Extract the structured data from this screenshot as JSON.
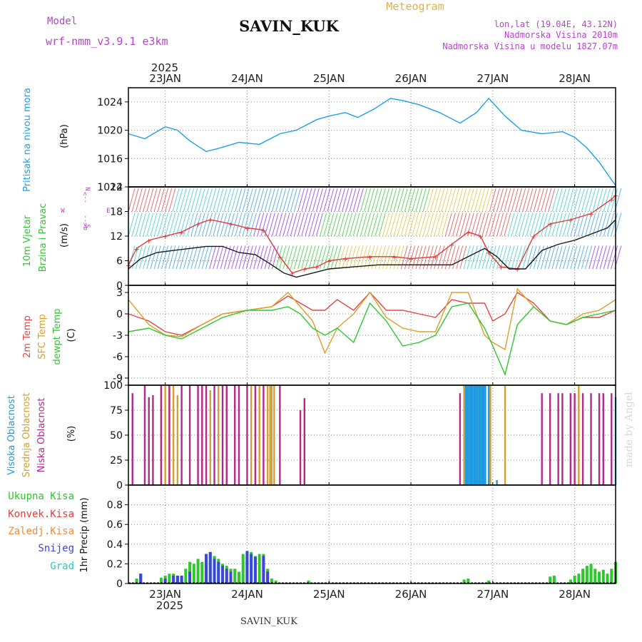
{
  "header": {
    "model_label": "Model",
    "model_name": "wrf-nmm_v3.9.1 e3km",
    "station": "SAVIN_KUK",
    "product": "Meteogram",
    "coords": "lon,lat (19.04E, 43.12N)",
    "elevation": "Nadmorska Visina 2010m",
    "model_elevation": "Nadmorska Visina u modelu 1827.07m"
  },
  "footer": {
    "station": "SAVIN_KUK",
    "watermark": "made by Angel"
  },
  "colors": {
    "pressure": "#1ea0e6",
    "wind_speed": "#e03c3c",
    "wind_dir": "#1a1a1a",
    "t2m": "#e64646",
    "tsfc": "#dca028",
    "dewpt": "#2ec82e",
    "cloud_high": "#1e9be0",
    "cloud_mid": "#d2a032",
    "cloud_low": "#b4288c",
    "rain_total": "#2ec82e",
    "rain_conv": "#e63c3c",
    "frz_rain": "#f08c3c",
    "snow": "#3c46dc",
    "hail": "#28c8c8",
    "model_label": "#b446c8"
  },
  "time_axis": {
    "year": "2025",
    "start_day": 22.55,
    "end_day": 28.5,
    "day_labels": [
      "23JAN",
      "24JAN",
      "25JAN",
      "26JAN",
      "27JAN",
      "28JAN"
    ],
    "day_values": [
      23,
      24,
      25,
      26,
      27,
      28
    ]
  },
  "chart_data": [
    {
      "type": "line",
      "title": "Pritisak na nivou mora",
      "ylabel": "(hPa)",
      "ylim": [
        1012,
        1026
      ],
      "yticks": [
        1012,
        1016,
        1020,
        1024
      ],
      "series": [
        {
          "name": "Pritisak na nivou mora",
          "color_key": "pressure",
          "x": [
            22.55,
            22.75,
            23.0,
            23.15,
            23.3,
            23.5,
            23.7,
            23.9,
            24.15,
            24.4,
            24.6,
            24.85,
            25.0,
            25.2,
            25.35,
            25.55,
            25.75,
            25.9,
            26.1,
            26.35,
            26.6,
            26.8,
            26.95,
            27.15,
            27.35,
            27.6,
            27.85,
            28.0,
            28.15,
            28.3,
            28.45,
            28.5
          ],
          "y": [
            1019.5,
            1018.8,
            1020.5,
            1020.0,
            1018.5,
            1017.0,
            1017.6,
            1018.3,
            1018.0,
            1019.5,
            1020.0,
            1021.5,
            1022.0,
            1022.5,
            1021.8,
            1023.0,
            1024.5,
            1024.2,
            1023.6,
            1022.5,
            1021.0,
            1022.5,
            1024.5,
            1022.0,
            1020.0,
            1019.5,
            1019.8,
            1019.0,
            1017.5,
            1015.5,
            1013.0,
            1012.2
          ]
        }
      ]
    },
    {
      "type": "line",
      "title": "10m Vjetar Brzina i Pravac",
      "ylabel": "(m/s)",
      "ylim": [
        0,
        24
      ],
      "yticks": [
        0,
        6,
        12,
        18,
        24
      ],
      "legend": {
        "w": "W",
        "e": "E",
        "n": "N",
        "s": "S",
        "left": "α<--",
        "right": "-->"
      },
      "series": [
        {
          "name": "brzina",
          "color_key": "wind_speed",
          "x": [
            22.55,
            22.65,
            22.8,
            23.0,
            23.2,
            23.4,
            23.55,
            23.8,
            24.0,
            24.2,
            24.4,
            24.55,
            24.7,
            24.85,
            25.0,
            25.2,
            25.5,
            25.8,
            26.0,
            26.3,
            26.5,
            26.7,
            26.85,
            26.95,
            27.1,
            27.3,
            27.5,
            27.7,
            27.95,
            28.2,
            28.45,
            28.5
          ],
          "y": [
            5,
            9,
            11,
            12,
            13,
            15,
            16,
            15,
            14,
            13.5,
            7,
            3,
            4,
            4.5,
            6,
            6.5,
            7,
            7,
            6.5,
            7,
            10,
            13,
            12,
            8,
            4.5,
            4,
            12,
            15,
            16,
            17.5,
            21,
            22
          ]
        },
        {
          "name": "pravac",
          "color_key": "wind_dir",
          "x": [
            22.55,
            22.7,
            22.9,
            23.1,
            23.3,
            23.5,
            23.7,
            23.9,
            24.1,
            24.3,
            24.45,
            24.6,
            24.8,
            25.0,
            25.3,
            25.6,
            25.9,
            26.2,
            26.5,
            26.7,
            26.9,
            27.05,
            27.2,
            27.4,
            27.6,
            27.8,
            28.0,
            28.2,
            28.4,
            28.5
          ],
          "y": [
            4,
            6.5,
            8,
            8.5,
            9,
            9.5,
            9.5,
            8,
            7.5,
            5,
            3,
            2,
            3,
            4,
            4.5,
            5,
            5,
            5,
            5,
            7,
            9,
            7,
            4,
            4,
            8.5,
            10,
            11,
            12.5,
            14,
            16
          ]
        }
      ]
    },
    {
      "type": "line",
      "title": "2m Temp / SFC Temp / dewpt Temp",
      "ylabel": "(C)",
      "ylim": [
        -10,
        4
      ],
      "yticks": [
        -9,
        -6,
        -3,
        0,
        3
      ],
      "series": [
        {
          "name": "2m Temp",
          "color_key": "t2m",
          "x": [
            22.55,
            22.8,
            23.0,
            23.2,
            23.45,
            23.7,
            24.0,
            24.3,
            24.5,
            24.65,
            24.8,
            24.95,
            25.1,
            25.3,
            25.5,
            25.7,
            25.9,
            26.1,
            26.3,
            26.5,
            26.7,
            26.9,
            27.0,
            27.15,
            27.3,
            27.5,
            27.7,
            27.9,
            28.1,
            28.3,
            28.5
          ],
          "y": [
            0,
            -1,
            -2.5,
            -3,
            -1.5,
            0,
            0.5,
            1,
            2.5,
            1.5,
            0.5,
            0.5,
            2,
            0.5,
            3,
            0.5,
            0.5,
            0,
            -0.5,
            2,
            1.5,
            1.5,
            -1,
            0,
            3,
            1.5,
            -1,
            -1.5,
            -0.5,
            -0.5,
            0.5
          ]
        },
        {
          "name": "SFC Temp",
          "color_key": "tsfc",
          "x": [
            22.55,
            22.8,
            23.0,
            23.2,
            23.45,
            23.7,
            24.0,
            24.3,
            24.5,
            24.65,
            24.8,
            24.95,
            25.1,
            25.3,
            25.5,
            25.7,
            25.9,
            26.1,
            26.3,
            26.5,
            26.7,
            26.9,
            27.0,
            27.15,
            27.3,
            27.5,
            27.7,
            27.9,
            28.1,
            28.3,
            28.5
          ],
          "y": [
            2,
            -1.5,
            -3,
            -3.2,
            -1.5,
            0,
            0.5,
            1,
            3,
            1,
            -1,
            -5.5,
            -2,
            0,
            3,
            -0.5,
            -2,
            -2.5,
            -2.5,
            3,
            3,
            -3,
            -4,
            -5,
            3.5,
            1,
            -1,
            -1.5,
            0,
            0.5,
            2
          ]
        },
        {
          "name": "dewpt Temp",
          "color_key": "dewpt",
          "x": [
            22.55,
            22.8,
            23.0,
            23.2,
            23.45,
            23.7,
            24.0,
            24.3,
            24.5,
            24.65,
            24.8,
            24.95,
            25.1,
            25.3,
            25.5,
            25.7,
            25.9,
            26.1,
            26.3,
            26.5,
            26.7,
            26.9,
            27.0,
            27.15,
            27.3,
            27.5,
            27.7,
            27.9,
            28.1,
            28.3,
            28.5
          ],
          "y": [
            -2.5,
            -2,
            -3,
            -3.5,
            -2,
            -0.5,
            0.5,
            0.5,
            1,
            0,
            -2,
            -3,
            -2,
            -4,
            1.5,
            -1,
            -4.5,
            -4,
            -3,
            1,
            1.5,
            -2,
            -4.5,
            -8.5,
            -1.5,
            1,
            -1,
            -1.5,
            -0.5,
            0,
            0.5
          ]
        }
      ]
    },
    {
      "type": "bar",
      "title": "Visoka / Srednja / Niska Oblacnost",
      "ylabel": "(%)",
      "ylim": [
        0,
        100
      ],
      "yticks": [
        0,
        25,
        50,
        75,
        100
      ],
      "series": [
        {
          "name": "Visoka Oblacnost",
          "color_key": "cloud_high",
          "x": [
            26.65,
            26.67,
            26.69,
            26.71,
            26.73,
            26.75,
            26.77,
            26.79,
            26.81,
            26.83,
            26.85,
            26.87,
            26.89,
            26.91,
            26.95,
            26.97,
            27.05,
            28.5
          ],
          "y": [
            100,
            100,
            100,
            100,
            100,
            100,
            100,
            100,
            100,
            100,
            100,
            100,
            100,
            100,
            100,
            95,
            5,
            88
          ]
        },
        {
          "name": "Srednja Oblacnost",
          "color_key": "cloud_mid",
          "x": [
            22.95,
            23.0,
            23.05,
            23.1,
            23.15,
            23.45,
            23.55,
            23.65,
            23.75,
            24.05,
            24.15,
            24.25,
            24.28,
            24.3,
            24.33,
            26.65,
            26.97,
            27.15,
            28.05
          ],
          "y": [
            100,
            100,
            100,
            100,
            90,
            27,
            95,
            100,
            15,
            100,
            100,
            100,
            100,
            100,
            100,
            100,
            100,
            100,
            100
          ]
        },
        {
          "name": "Niska Oblacnost",
          "color_key": "cloud_low",
          "x": [
            22.6,
            22.75,
            22.8,
            22.85,
            22.95,
            23.05,
            23.2,
            23.3,
            23.4,
            23.45,
            23.5,
            23.6,
            23.7,
            23.75,
            23.85,
            23.9,
            24.0,
            24.1,
            24.2,
            24.4,
            24.65,
            24.7,
            26.6,
            27.6,
            27.7,
            27.8,
            27.85,
            27.95,
            28.0,
            28.1,
            28.2,
            28.3,
            28.35,
            28.45
          ],
          "y": [
            92,
            100,
            88,
            90,
            100,
            100,
            100,
            100,
            100,
            100,
            100,
            100,
            100,
            100,
            100,
            100,
            100,
            100,
            100,
            100,
            75,
            87,
            92,
            92,
            92,
            92,
            92,
            92,
            92,
            92,
            92,
            92,
            92,
            92
          ]
        }
      ]
    },
    {
      "type": "bar",
      "title": "Precip",
      "ylabel": "1hr Precip (mm)",
      "ylim": [
        0,
        1
      ],
      "yticks": [
        0,
        0.2,
        0.4,
        0.6,
        0.8
      ],
      "legend": [
        "Ukupna Kisa",
        "Konvek.Kisa",
        "Zaledj.Kisa",
        "Snijeg",
        "Grad"
      ],
      "series": [
        {
          "name": "Ukupna Kisa",
          "color_key": "rain_total",
          "x": [
            22.65,
            22.7,
            22.95,
            23.0,
            23.05,
            23.1,
            23.15,
            23.2,
            23.25,
            23.3,
            23.35,
            23.4,
            23.45,
            23.5,
            23.55,
            23.6,
            23.65,
            23.7,
            23.75,
            23.8,
            23.85,
            23.9,
            23.95,
            24.0,
            24.05,
            24.1,
            24.15,
            24.2,
            24.25,
            24.3,
            24.35,
            24.75,
            26.65,
            26.7,
            26.95,
            27.7,
            27.75,
            27.95,
            28.0,
            28.05,
            28.1,
            28.15,
            28.2,
            28.25,
            28.3,
            28.35,
            28.4,
            28.45,
            28.5
          ],
          "y": [
            0.05,
            0.1,
            0.06,
            0.08,
            0.1,
            0.1,
            0.08,
            0.08,
            0.15,
            0.22,
            0.2,
            0.25,
            0.22,
            0.3,
            0.32,
            0.28,
            0.25,
            0.2,
            0.18,
            0.15,
            0.15,
            0.12,
            0.3,
            0.33,
            0.32,
            0.28,
            0.3,
            0.3,
            0.15,
            0.05,
            0.03,
            0.03,
            0.04,
            0.05,
            0.03,
            0.07,
            0.08,
            0.04,
            0.08,
            0.1,
            0.15,
            0.18,
            0.2,
            0.15,
            0.12,
            0.14,
            0.1,
            0.15,
            0.22
          ]
        },
        {
          "name": "Snijeg",
          "color_key": "snow",
          "x": [
            22.7,
            23.0,
            23.1,
            23.15,
            23.2,
            23.3,
            23.5,
            23.55,
            23.6,
            23.65,
            23.7,
            23.75,
            23.8,
            24.0,
            24.05,
            24.1,
            24.2,
            24.25
          ],
          "y": [
            0.1,
            0.05,
            0.08,
            0.08,
            0.08,
            0.12,
            0.3,
            0.32,
            0.25,
            0.22,
            0.18,
            0.15,
            0.12,
            0.33,
            0.3,
            0.27,
            0.28,
            0.12
          ]
        }
      ]
    }
  ],
  "labels": {
    "p1": {
      "main": "Pritisak na nivou mora",
      "unit": "(hPa)"
    },
    "p2": {
      "main": "10m Vjetar",
      "sub": "Brzina i Pravac",
      "unit": "(m/s)"
    },
    "p3": {
      "l1": "2m Temp",
      "l2": "SFC Temp",
      "l3": "dewpt Temp",
      "unit": "(C)"
    },
    "p4": {
      "l1": "Visoka Oblacnost",
      "l2": "Srednja Oblacnost",
      "l3": "Niska Oblacnost",
      "unit": "(%)"
    },
    "p5": {
      "l1": "Ukupna Kisa",
      "l2": "Konvek.Kisa",
      "l3": "Zaledj.Kisa",
      "l4": "Snijeg",
      "l5": "Grad",
      "unit": "1hr Precip (mm)"
    }
  }
}
